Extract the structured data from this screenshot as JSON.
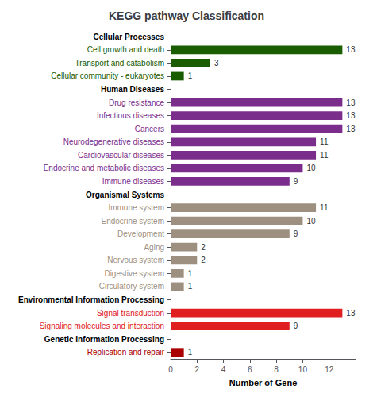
{
  "chart_data": {
    "type": "bar",
    "orientation": "horizontal",
    "title": "KEGG pathway Classification",
    "xlabel": "Number of Gene",
    "categories": [
      "Cellular Processes",
      "Cell growth and death",
      "Transport and catabolism",
      "Cellular community - eukaryotes",
      "Human Diseases",
      "Drug resistance",
      "Infectious diseases",
      "Cancers",
      "Neurodegenerative diseases",
      "Cardiovascular diseases",
      "Endocrine and metabolic diseases",
      "Immune diseases",
      "Organismal Systems",
      "Immune system",
      "Endocrine system",
      "Development",
      "Aging",
      "Nervous system",
      "Digestive system",
      "Circulatory system",
      "Environmental Information Processing",
      "Signal transduction",
      "Signaling molecules and interaction",
      "Genetic Information Processing",
      "Replication and repair"
    ],
    "values": [
      null,
      13,
      3,
      1,
      null,
      13,
      13,
      13,
      11,
      11,
      10,
      9,
      null,
      11,
      10,
      9,
      2,
      2,
      1,
      1,
      null,
      13,
      9,
      null,
      1
    ],
    "colors": [
      null,
      "#1a5c00",
      "#1a5c00",
      "#1a5c00",
      null,
      "#7b2d8b",
      "#7b2d8b",
      "#7b2d8b",
      "#7b2d8b",
      "#7b2d8b",
      "#7b2d8b",
      "#7b2d8b",
      null,
      "#9e9080",
      "#9e9080",
      "#9e9080",
      "#9e9080",
      "#9e9080",
      "#9e9080",
      "#9e9080",
      null,
      "#e02020",
      "#e02020",
      null,
      "#aa0000"
    ],
    "xlim": [
      0,
      14
    ],
    "xticks": [
      0,
      2,
      4,
      6,
      8,
      10,
      12
    ],
    "data_labels": true,
    "grid": false
  }
}
